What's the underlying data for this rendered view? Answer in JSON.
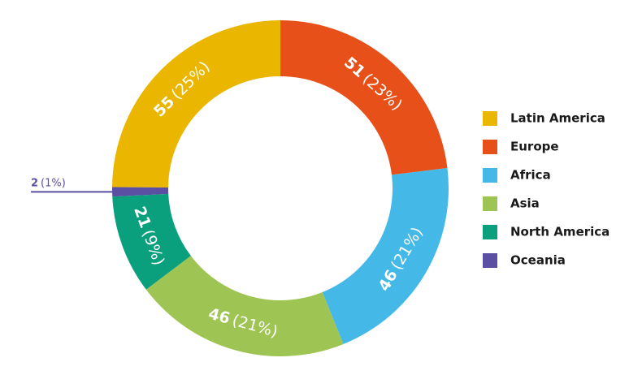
{
  "chart_data": {
    "type": "donut",
    "categories": [
      "Latin America",
      "Europe",
      "Africa",
      "Asia",
      "North America",
      "Oceania"
    ],
    "values": [
      55,
      51,
      46,
      46,
      21,
      2
    ],
    "share_labels": [
      "(25%)",
      "(23%)",
      "(21%)",
      "(21%)",
      "(9%)",
      "(1%)"
    ],
    "colors": [
      "#eab600",
      "#e8501a",
      "#44b9e8",
      "#9ec453",
      "#0aa07e",
      "#5a4fa2"
    ],
    "legend": "right"
  }
}
